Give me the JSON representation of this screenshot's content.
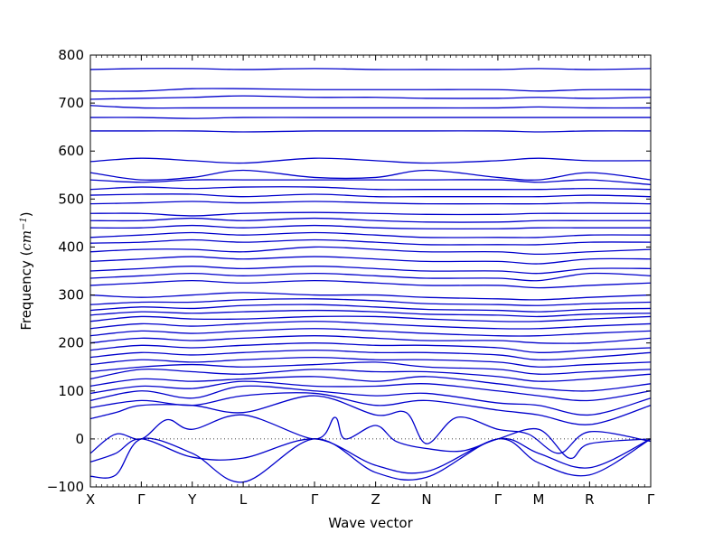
{
  "chart_data": {
    "type": "line",
    "xlabel": "Wave vector",
    "ylabel_prefix": "Frequency (",
    "ylabel_unit": "cm",
    "ylabel_exponent": "−1",
    "ylabel_suffix": ")",
    "ylim": [
      -100,
      800
    ],
    "yticks": [
      -100,
      0,
      100,
      200,
      300,
      400,
      500,
      600,
      700,
      800
    ],
    "xlim": [
      0,
      11
    ],
    "high_symmetry_points": [
      {
        "label": "X",
        "x": 0
      },
      {
        "label": "Γ",
        "x": 1
      },
      {
        "label": "Y",
        "x": 2
      },
      {
        "label": "L",
        "x": 3
      },
      {
        "label": "Γ",
        "x": 4.4
      },
      {
        "label": "Z",
        "x": 5.6
      },
      {
        "label": "N",
        "x": 6.6
      },
      {
        "label": "Γ",
        "x": 8
      },
      {
        "label": "M",
        "x": 8.8
      },
      {
        "label": "R",
        "x": 9.8
      },
      {
        "label": "Γ",
        "x": 11
      }
    ],
    "zero_line": {
      "y": 0,
      "style": "dotted"
    },
    "line_color": "#0000cc",
    "series": [
      {
        "x": [
          0,
          0.5,
          1,
          2,
          3,
          4.4,
          5.6,
          6.6,
          8,
          8.8,
          9.8,
          11
        ],
        "y": [
          -78,
          -75,
          0,
          -30,
          -90,
          0,
          -70,
          -80,
          0,
          -50,
          -75,
          0
        ]
      },
      {
        "x": [
          0,
          0.5,
          1,
          2,
          3,
          4.4,
          5.6,
          6.6,
          8,
          8.8,
          9.8,
          11
        ],
        "y": [
          -48,
          -30,
          0,
          -38,
          -40,
          0,
          -55,
          -68,
          0,
          -30,
          -60,
          0
        ]
      },
      {
        "x": [
          0,
          0.5,
          1,
          1.5,
          2,
          3,
          4.4,
          4.8,
          5,
          5.6,
          6,
          6.6,
          7.3,
          8,
          8.8,
          9.4,
          9.8,
          11
        ],
        "y": [
          -30,
          10,
          0,
          40,
          20,
          50,
          0,
          45,
          0,
          28,
          -5,
          -20,
          -25,
          0,
          20,
          -40,
          -10,
          0
        ]
      },
      {
        "x": [
          0,
          0.5,
          1,
          2,
          3,
          4.4,
          5.6,
          6.2,
          6.6,
          7.2,
          8,
          8.6,
          9.2,
          9.8,
          11
        ],
        "y": [
          42,
          55,
          70,
          70,
          55,
          90,
          50,
          55,
          -10,
          45,
          20,
          10,
          -30,
          15,
          -5
        ]
      },
      {
        "x": [
          0,
          1,
          2,
          3,
          4.4,
          5.6,
          6.6,
          8,
          8.8,
          9.8,
          11
        ],
        "y": [
          65,
          80,
          70,
          90,
          95,
          70,
          80,
          60,
          50,
          30,
          70
        ]
      },
      {
        "x": [
          0,
          1,
          2,
          3,
          4.4,
          5.6,
          6.6,
          8,
          8.8,
          9.8,
          11
        ],
        "y": [
          80,
          100,
          85,
          110,
          100,
          90,
          95,
          75,
          70,
          50,
          85
        ]
      },
      {
        "x": [
          0,
          1,
          2,
          3,
          4.4,
          5.6,
          6.6,
          8,
          8.8,
          9.8,
          11
        ],
        "y": [
          95,
          110,
          105,
          120,
          110,
          110,
          115,
          100,
          90,
          80,
          100
        ]
      },
      {
        "x": [
          0,
          1,
          2,
          3,
          4.4,
          5.6,
          6.6,
          8,
          8.8,
          9.8,
          11
        ],
        "y": [
          110,
          125,
          120,
          125,
          130,
          120,
          130,
          115,
          105,
          100,
          115
        ]
      },
      {
        "x": [
          0,
          1,
          2,
          3,
          4.4,
          5.6,
          6.6,
          8,
          8.8,
          9.8,
          11
        ],
        "y": [
          125,
          145,
          140,
          135,
          145,
          140,
          140,
          130,
          120,
          125,
          135
        ]
      },
      {
        "x": [
          0,
          1,
          2,
          3,
          4.4,
          5.6,
          6.6,
          8,
          8.8,
          9.8,
          11
        ],
        "y": [
          140,
          150,
          155,
          150,
          155,
          160,
          150,
          145,
          135,
          140,
          145
        ]
      },
      {
        "x": [
          0,
          1,
          2,
          3,
          4.4,
          5.6,
          6.6,
          8,
          8.8,
          9.8,
          11
        ],
        "y": [
          155,
          165,
          160,
          165,
          170,
          165,
          165,
          160,
          150,
          155,
          160
        ]
      },
      {
        "x": [
          0,
          1,
          2,
          3,
          4.4,
          5.6,
          6.6,
          8,
          8.8,
          9.8,
          11
        ],
        "y": [
          170,
          180,
          175,
          180,
          185,
          180,
          180,
          175,
          165,
          170,
          180
        ]
      },
      {
        "x": [
          0,
          1,
          2,
          3,
          4.4,
          5.6,
          6.6,
          8,
          8.8,
          9.8,
          11
        ],
        "y": [
          185,
          195,
          190,
          195,
          200,
          195,
          195,
          190,
          180,
          185,
          190
        ]
      },
      {
        "x": [
          0,
          1,
          2,
          3,
          4.4,
          5.6,
          6.6,
          8,
          8.8,
          9.8,
          11
        ],
        "y": [
          200,
          210,
          205,
          210,
          215,
          210,
          205,
          205,
          200,
          200,
          210
        ]
      },
      {
        "x": [
          0,
          1,
          2,
          3,
          4.4,
          5.6,
          6.6,
          8,
          8.8,
          9.8,
          11
        ],
        "y": [
          215,
          225,
          220,
          225,
          230,
          225,
          220,
          215,
          215,
          220,
          225
        ]
      },
      {
        "x": [
          0,
          1,
          2,
          3,
          4.4,
          5.6,
          6.6,
          8,
          8.8,
          9.8,
          11
        ],
        "y": [
          230,
          240,
          235,
          240,
          245,
          240,
          235,
          230,
          230,
          235,
          240
        ]
      },
      {
        "x": [
          0,
          1,
          2,
          3,
          4.4,
          5.6,
          6.6,
          8,
          8.8,
          9.8,
          11
        ],
        "y": [
          245,
          255,
          250,
          250,
          255,
          255,
          250,
          245,
          245,
          250,
          255
        ]
      },
      {
        "x": [
          0,
          1,
          2,
          3,
          4.4,
          5.6,
          6.6,
          8,
          8.8,
          9.8,
          11
        ],
        "y": [
          258,
          265,
          262,
          265,
          268,
          265,
          260,
          258,
          255,
          260,
          262
        ]
      },
      {
        "x": [
          0,
          1,
          2,
          3,
          4.4,
          5.6,
          6.6,
          8,
          8.8,
          9.8,
          11
        ],
        "y": [
          268,
          275,
          272,
          278,
          280,
          275,
          270,
          268,
          265,
          270,
          272
        ]
      },
      {
        "x": [
          0,
          1,
          2,
          3,
          4.4,
          5.6,
          6.6,
          8,
          8.8,
          9.8,
          11
        ],
        "y": [
          280,
          285,
          285,
          290,
          292,
          288,
          282,
          280,
          278,
          282,
          285
        ]
      },
      {
        "x": [
          0,
          1,
          2,
          3,
          4.4,
          5.6,
          6.6,
          8,
          8.8,
          9.8,
          11
        ],
        "y": [
          300,
          295,
          300,
          305,
          300,
          300,
          295,
          292,
          290,
          295,
          300
        ]
      },
      {
        "x": [
          0,
          1,
          2,
          3,
          4.4,
          5.6,
          6.6,
          8,
          8.8,
          9.8,
          11
        ],
        "y": [
          320,
          325,
          330,
          325,
          330,
          325,
          320,
          320,
          315,
          320,
          325
        ]
      },
      {
        "x": [
          0,
          1,
          2,
          3,
          4.4,
          5.6,
          6.6,
          8,
          8.8,
          9.8,
          11
        ],
        "y": [
          335,
          340,
          345,
          340,
          345,
          340,
          335,
          335,
          330,
          345,
          340
        ]
      },
      {
        "x": [
          0,
          1,
          2,
          3,
          4.4,
          5.6,
          6.6,
          8,
          8.8,
          9.8,
          11
        ],
        "y": [
          350,
          355,
          360,
          355,
          360,
          355,
          350,
          350,
          345,
          355,
          355
        ]
      },
      {
        "x": [
          0,
          1,
          2,
          3,
          4.4,
          5.6,
          6.6,
          8,
          8.8,
          9.8,
          11
        ],
        "y": [
          370,
          375,
          380,
          375,
          380,
          375,
          370,
          370,
          365,
          375,
          375
        ]
      },
      {
        "x": [
          0,
          1,
          2,
          3,
          4.4,
          5.6,
          6.6,
          8,
          8.8,
          9.8,
          11
        ],
        "y": [
          390,
          395,
          395,
          390,
          400,
          395,
          390,
          390,
          385,
          390,
          395
        ]
      },
      {
        "x": [
          0,
          1,
          2,
          3,
          4.4,
          5.6,
          6.6,
          8,
          8.8,
          9.8,
          11
        ],
        "y": [
          408,
          410,
          415,
          410,
          415,
          410,
          405,
          405,
          405,
          410,
          410
        ]
      },
      {
        "x": [
          0,
          1,
          2,
          3,
          4.4,
          5.6,
          6.6,
          8,
          8.8,
          9.8,
          11
        ],
        "y": [
          420,
          425,
          430,
          425,
          430,
          425,
          420,
          420,
          420,
          425,
          425
        ]
      },
      {
        "x": [
          0,
          1,
          2,
          3,
          4.4,
          5.6,
          6.6,
          8,
          8.8,
          9.8,
          11
        ],
        "y": [
          440,
          440,
          445,
          440,
          445,
          440,
          438,
          438,
          440,
          440,
          440
        ]
      },
      {
        "x": [
          0,
          1,
          2,
          3,
          4.4,
          5.6,
          6.6,
          8,
          8.8,
          9.8,
          11
        ],
        "y": [
          455,
          455,
          460,
          455,
          460,
          455,
          452,
          452,
          455,
          455,
          455
        ]
      },
      {
        "x": [
          0,
          1,
          2,
          3,
          4.4,
          5.6,
          6.6,
          8,
          8.8,
          9.8,
          11
        ],
        "y": [
          470,
          470,
          465,
          470,
          472,
          470,
          468,
          468,
          470,
          470,
          470
        ]
      },
      {
        "x": [
          0,
          1,
          2,
          3,
          4.4,
          5.6,
          6.6,
          8,
          8.8,
          9.8,
          11
        ],
        "y": [
          490,
          492,
          495,
          492,
          495,
          492,
          490,
          490,
          490,
          492,
          490
        ]
      },
      {
        "x": [
          0,
          1,
          2,
          3,
          4.4,
          5.6,
          6.6,
          8,
          8.8,
          9.8,
          11
        ],
        "y": [
          508,
          510,
          510,
          505,
          510,
          505,
          505,
          505,
          505,
          508,
          505
        ]
      },
      {
        "x": [
          0,
          1,
          2,
          3,
          4.4,
          5.6,
          6.6,
          8,
          8.8,
          9.8,
          11
        ],
        "y": [
          520,
          525,
          522,
          525,
          525,
          520,
          520,
          520,
          520,
          522,
          520
        ]
      },
      {
        "x": [
          0,
          1,
          2,
          3,
          4.4,
          5.6,
          6.6,
          8,
          8.8,
          9.8,
          11
        ],
        "y": [
          540,
          535,
          540,
          540,
          540,
          540,
          540,
          540,
          535,
          540,
          530
        ]
      },
      {
        "x": [
          0,
          1,
          2,
          3,
          4.4,
          5.6,
          6.6,
          8,
          8.8,
          9.8,
          11
        ],
        "y": [
          555,
          540,
          545,
          560,
          545,
          545,
          560,
          545,
          540,
          555,
          540
        ]
      },
      {
        "x": [
          0,
          1,
          2,
          3,
          4.4,
          5.6,
          6.6,
          8,
          8.8,
          9.8,
          11
        ],
        "y": [
          578,
          585,
          580,
          575,
          585,
          580,
          575,
          580,
          585,
          580,
          580
        ]
      },
      {
        "x": [
          0,
          1,
          2,
          3,
          4.4,
          5.6,
          6.6,
          8,
          8.8,
          9.8,
          11
        ],
        "y": [
          642,
          642,
          642,
          640,
          642,
          642,
          642,
          642,
          640,
          642,
          642
        ]
      },
      {
        "x": [
          0,
          1,
          2,
          3,
          4.4,
          5.6,
          6.6,
          8,
          8.8,
          9.8,
          11
        ],
        "y": [
          670,
          670,
          668,
          670,
          670,
          670,
          670,
          670,
          670,
          670,
          670
        ]
      },
      {
        "x": [
          0,
          1,
          2,
          3,
          4.4,
          5.6,
          6.6,
          8,
          8.8,
          9.8,
          11
        ],
        "y": [
          695,
          690,
          690,
          690,
          690,
          690,
          690,
          690,
          692,
          690,
          690
        ]
      },
      {
        "x": [
          0,
          1,
          2,
          3,
          4.4,
          5.6,
          6.6,
          8,
          8.8,
          9.8,
          11
        ],
        "y": [
          708,
          710,
          712,
          715,
          712,
          712,
          710,
          710,
          712,
          710,
          712
        ]
      },
      {
        "x": [
          0,
          1,
          2,
          3,
          4.4,
          5.6,
          6.6,
          8,
          8.8,
          9.8,
          11
        ],
        "y": [
          725,
          725,
          730,
          730,
          728,
          728,
          728,
          728,
          725,
          728,
          728
        ]
      },
      {
        "x": [
          0,
          1,
          2,
          3,
          4.4,
          5.6,
          6.6,
          8,
          8.8,
          9.8,
          11
        ],
        "y": [
          770,
          772,
          772,
          770,
          772,
          770,
          770,
          770,
          772,
          770,
          772
        ]
      }
    ]
  }
}
